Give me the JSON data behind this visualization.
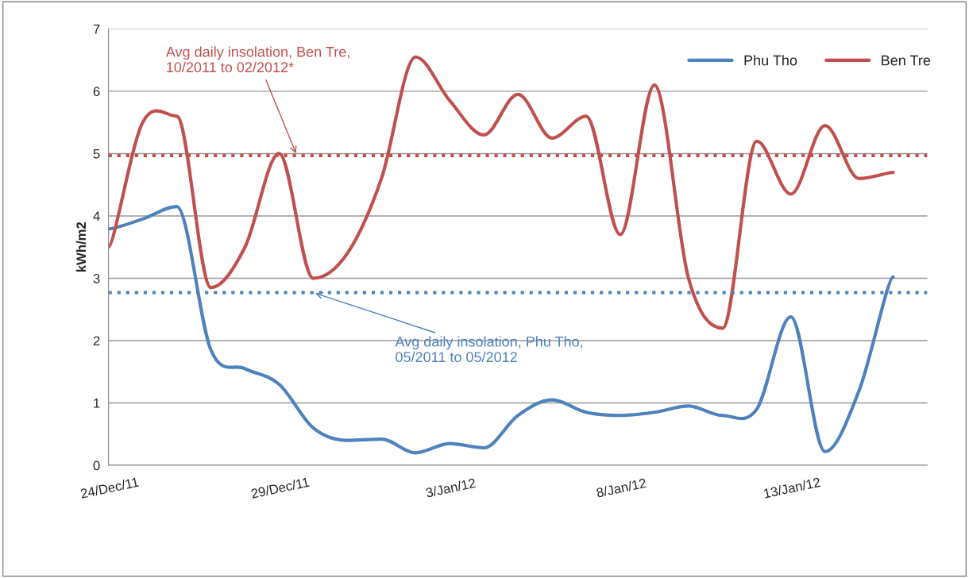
{
  "chart_data": {
    "type": "line",
    "ylabel": "kWh/m2",
    "x": [
      "2011-12-24",
      "2011-12-25",
      "2011-12-26",
      "2011-12-27",
      "2011-12-28",
      "2011-12-29",
      "2011-12-30",
      "2011-12-31",
      "2012-01-01",
      "2012-01-02",
      "2012-01-03",
      "2012-01-04",
      "2012-01-05",
      "2012-01-06",
      "2012-01-07",
      "2012-01-08",
      "2012-01-09",
      "2012-01-10",
      "2012-01-11",
      "2012-01-12",
      "2012-01-13",
      "2012-01-14",
      "2012-01-15",
      "2012-01-16"
    ],
    "series": [
      {
        "name": "Phu Tho",
        "color": "#4f81bd",
        "values": [
          3.79,
          3.95,
          4.15,
          1.85,
          1.55,
          1.3,
          0.6,
          0.4,
          0.42,
          0.2,
          0.35,
          0.28,
          0.8,
          1.05,
          0.85,
          0.8,
          0.85,
          0.95,
          0.8,
          0.9,
          2.38,
          0.22,
          1.2,
          3.02
        ]
      },
      {
        "name": "Ben Tre",
        "color": "#c0504d",
        "values": [
          3.5,
          5.5,
          5.6,
          2.85,
          3.5,
          5.0,
          3.0,
          3.4,
          4.6,
          6.55,
          5.85,
          5.3,
          5.95,
          5.25,
          5.6,
          3.7,
          6.1,
          3.0,
          2.2,
          5.2,
          4.35,
          5.45,
          4.6,
          4.7
        ]
      }
    ],
    "ref_lines": [
      {
        "axis": "y",
        "value": 4.97,
        "label": "Avg daily insolation, Ben Tre,\n10/2011 to 02/2012*",
        "color": "#c0504d",
        "line_style": "dotted"
      },
      {
        "axis": "y",
        "value": 2.77,
        "label": "Avg daily insolation, Phu Tho,\n05/2011 to 05/2012",
        "color": "#4f81bd",
        "line_style": "dotted"
      }
    ],
    "xlim": [
      "2011-12-24",
      "2012-01-17"
    ],
    "xticks": [
      {
        "value": "2011-12-24",
        "label": "24/Dec/11"
      },
      {
        "value": "2011-12-29",
        "label": "29/Dec/11"
      },
      {
        "value": "2012-01-03",
        "label": "3/Jan/12"
      },
      {
        "value": "2012-01-08",
        "label": "8/Jan/12"
      },
      {
        "value": "2012-01-13",
        "label": "13/Jan/12"
      }
    ],
    "ylim": [
      0,
      7
    ],
    "yticks": [
      0,
      1,
      2,
      3,
      4,
      5,
      6,
      7
    ],
    "grid": "y",
    "legend": "top right",
    "marker": "none",
    "line_style": "solid"
  }
}
